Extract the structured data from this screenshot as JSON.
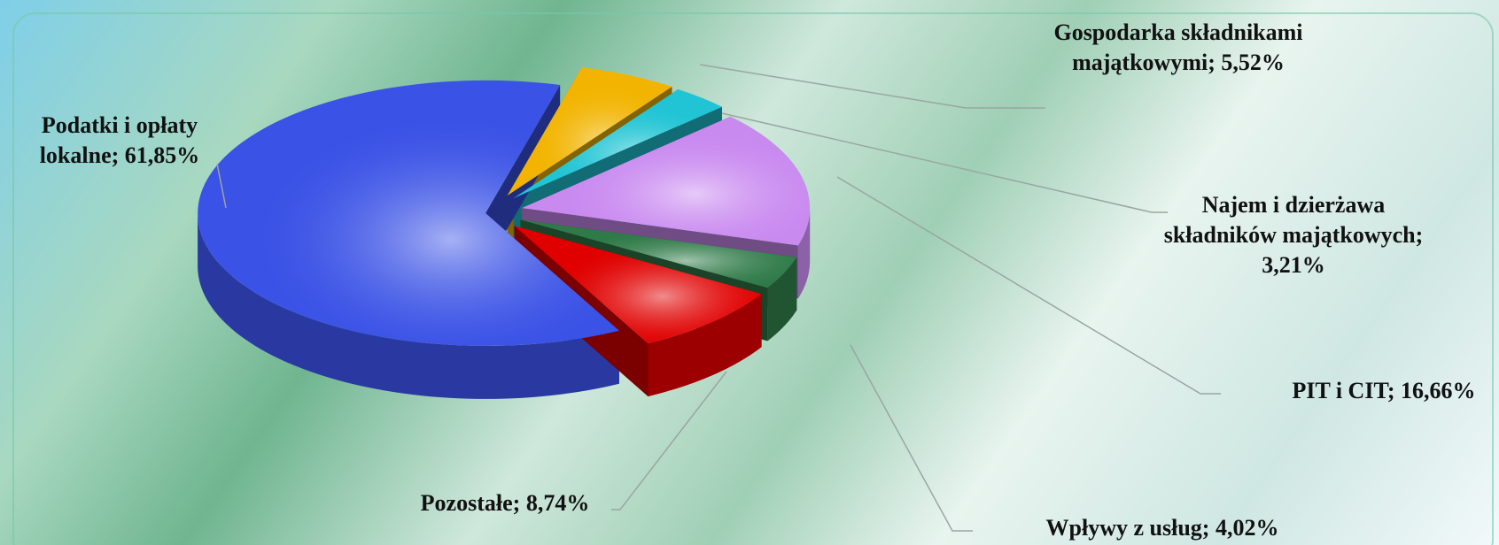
{
  "chart_data": {
    "type": "pie3d",
    "categories": [
      "Gospodarka składnikami majątkowymi",
      "Najem i dzierżawa składników majątkowych",
      "PIT i CIT",
      "Wpływy z usług",
      "Pozostałe",
      "Podatki i opłaty lokalne"
    ],
    "values": [
      5.52,
      3.21,
      16.66,
      4.02,
      8.74,
      61.85
    ],
    "value_labels": [
      "5,52%",
      "3,21%",
      "16,66%",
      "4,02%",
      "8,74%",
      "61,85%"
    ],
    "label_separator": "; ",
    "colors": [
      "#f2b400",
      "#20c4d4",
      "#c98af0",
      "#2f7a48",
      "#e00000",
      "#3a52e6"
    ]
  }
}
